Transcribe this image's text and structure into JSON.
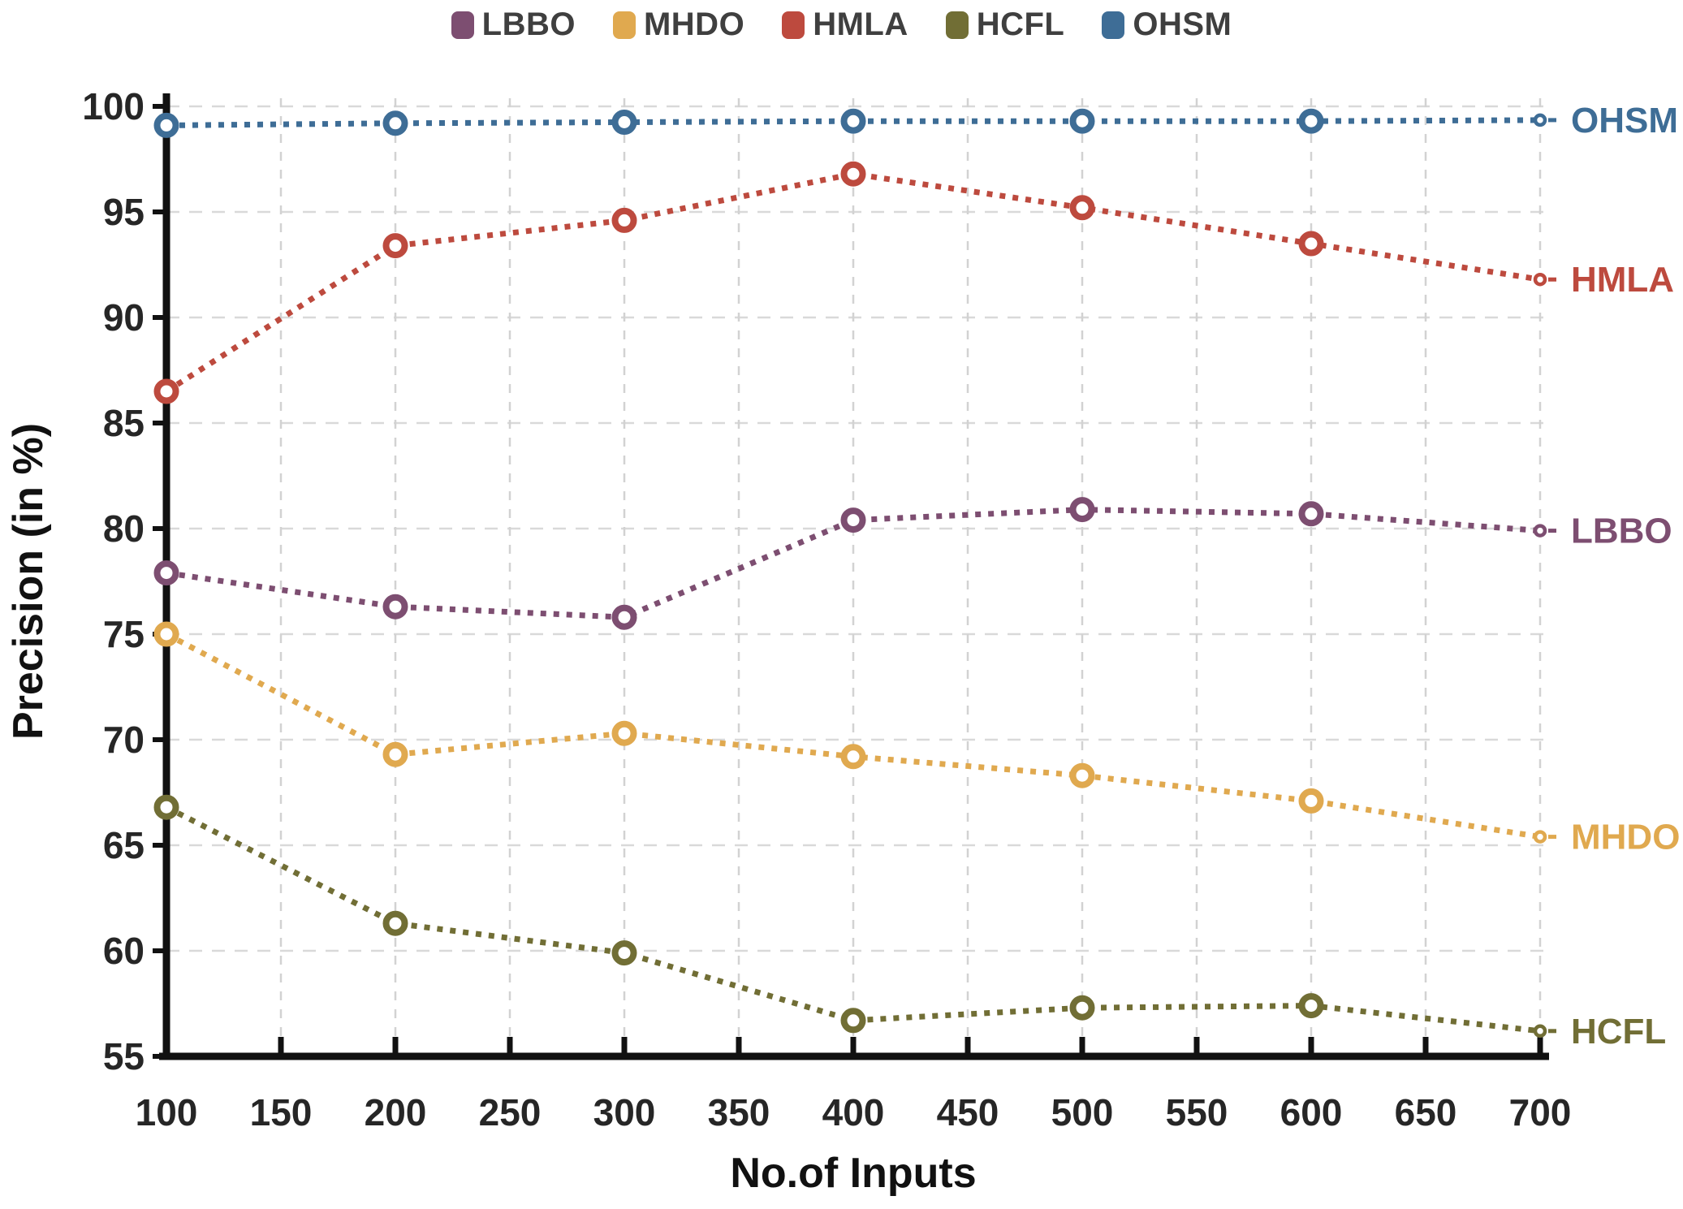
{
  "legend": {
    "items": [
      {
        "label": "LBBO",
        "color": "#7d4e71"
      },
      {
        "label": "MHDO",
        "color": "#e0a94f"
      },
      {
        "label": "HMLA",
        "color": "#bd4a3e"
      },
      {
        "label": "HCFL",
        "color": "#716e35"
      },
      {
        "label": "OHSM",
        "color": "#3e6d96"
      }
    ]
  },
  "axes": {
    "x": {
      "title": "No.of Inputs",
      "min": 100,
      "max": 700,
      "tick_step": 50,
      "tick_labels": [
        "100",
        "150",
        "200",
        "250",
        "300",
        "350",
        "400",
        "450",
        "500",
        "550",
        "600",
        "650",
        "700"
      ]
    },
    "y": {
      "title": "Precision (in %)",
      "min": 55,
      "max": 100,
      "tick_step": 5,
      "tick_labels": [
        "55",
        "60",
        "65",
        "70",
        "75",
        "80",
        "85",
        "90",
        "95",
        "100"
      ]
    }
  },
  "chart_data": {
    "type": "line",
    "title": "",
    "xlabel": "No.of Inputs",
    "ylabel": "Precision (in %)",
    "x": [
      100,
      200,
      300,
      400,
      500,
      600,
      700
    ],
    "xlim": [
      100,
      700
    ],
    "ylim": [
      55,
      100
    ],
    "grid": true,
    "legend_position": "top",
    "line_style": "dotted",
    "marker": "open-circle",
    "series": [
      {
        "name": "LBBO",
        "color": "#7d4e71",
        "values": [
          77.9,
          76.3,
          75.8,
          80.4,
          80.9,
          80.7,
          79.9
        ]
      },
      {
        "name": "MHDO",
        "color": "#e0a94f",
        "values": [
          75.0,
          69.3,
          70.3,
          69.2,
          68.3,
          67.1,
          65.4
        ]
      },
      {
        "name": "HMLA",
        "color": "#bd4a3e",
        "values": [
          86.5,
          93.4,
          94.6,
          96.8,
          95.2,
          93.5,
          91.8
        ]
      },
      {
        "name": "HCFL",
        "color": "#716e35",
        "values": [
          66.8,
          61.3,
          59.9,
          56.7,
          57.3,
          57.4,
          56.2
        ]
      },
      {
        "name": "OHSM",
        "color": "#3e6d96",
        "values": [
          99.1,
          99.2,
          99.25,
          99.3,
          99.3,
          99.3,
          99.35
        ]
      }
    ],
    "end_labels": [
      "OHSM",
      "HMLA",
      "LBBO",
      "MHDO",
      "HCFL"
    ],
    "grid_color": "#d9d9d9",
    "axis_color": "#111111"
  }
}
